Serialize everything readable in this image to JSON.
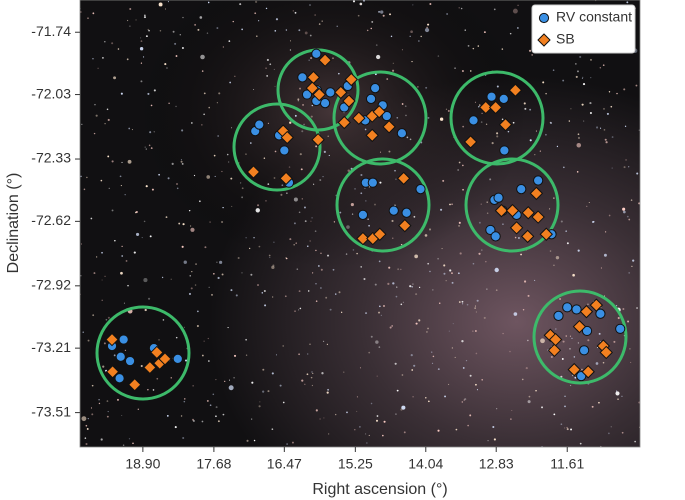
{
  "chart_data": {
    "type": "scatter",
    "x_label": "Right ascension (°)",
    "y_label": "Declination (°)",
    "xlim": [
      19.98,
      10.36
    ],
    "ylim": [
      -73.67,
      -71.59
    ],
    "xticks": [
      {
        "value": 18.9,
        "label": "18.90"
      },
      17.68,
      16.47,
      15.25,
      14.04,
      12.83,
      11.61
    ],
    "yticks": [
      -71.74,
      -72.03,
      -72.33,
      -72.62,
      -72.92,
      -73.21,
      -73.51
    ],
    "legend": "upper right",
    "series": [
      {
        "name": "RV constant",
        "color": "#3a8fe3",
        "marker": "circle",
        "x": [
          15.92,
          16.16,
          15.91,
          15.77,
          15.68,
          15.92,
          16.08,
          15.38,
          14.98,
          14.78,
          15.08,
          14.71,
          14.45,
          14.91,
          15.44,
          16.97,
          16.9,
          16.47,
          16.39,
          16.56,
          15.07,
          14.95,
          15.12,
          14.59,
          14.37,
          14.13,
          12.91,
          12.7,
          12.69,
          13.22,
          12.86,
          12.79,
          12.72,
          12.93,
          12.84,
          12.4,
          12.11,
          11.88,
          12.48,
          19.43,
          19.23,
          19.28,
          19.3,
          19.12,
          18.71,
          18.3,
          11.76,
          11.61,
          11.45,
          11.27,
          11.04,
          10.7,
          11.37,
          11.32
        ],
        "y": [
          -71.84,
          -71.95,
          -72.01,
          -72.07,
          -72.02,
          -72.06,
          -72.03,
          -71.99,
          -72.05,
          -72.08,
          -72.15,
          -72.13,
          -72.21,
          -72.0,
          -72.09,
          -72.2,
          -72.17,
          -72.29,
          -72.44,
          -72.22,
          -72.44,
          -72.44,
          -72.59,
          -72.57,
          -72.58,
          -72.47,
          -72.04,
          -72.05,
          -72.29,
          -72.15,
          -72.52,
          -72.51,
          -72.57,
          -72.66,
          -72.69,
          -72.47,
          -72.43,
          -72.68,
          -72.59,
          -73.2,
          -73.17,
          -73.25,
          -73.35,
          -73.27,
          -73.21,
          -73.26,
          -73.06,
          -73.02,
          -73.03,
          -73.13,
          -73.05,
          -73.12,
          -73.34,
          -73.22
        ]
      },
      {
        "name": "SB",
        "color": "#f28020",
        "marker": "diamond",
        "x": [
          15.77,
          15.97,
          15.99,
          15.87,
          15.5,
          15.32,
          15.36,
          15.19,
          14.96,
          14.84,
          14.67,
          15.44,
          14.96,
          16.49,
          16.42,
          15.89,
          17.0,
          16.44,
          15.12,
          14.95,
          14.83,
          14.42,
          14.4,
          13.01,
          12.84,
          12.5,
          12.67,
          13.27,
          12.74,
          12.55,
          12.48,
          12.28,
          12.11,
          12.14,
          11.97,
          12.29,
          19.43,
          19.42,
          19.04,
          18.78,
          18.66,
          18.61,
          18.52,
          11.9,
          11.83,
          11.4,
          11.11,
          10.99,
          10.94,
          11.49,
          11.25,
          11.81,
          11.28
        ],
        "y": [
          -71.87,
          -71.95,
          -72.0,
          -72.03,
          -72.02,
          -71.96,
          -72.06,
          -72.14,
          -72.13,
          -72.11,
          -72.18,
          -72.16,
          -72.22,
          -72.2,
          -72.23,
          -72.24,
          -72.39,
          -72.42,
          -72.7,
          -72.7,
          -72.68,
          -72.42,
          -72.64,
          -72.09,
          -72.09,
          -72.01,
          -72.17,
          -72.25,
          -72.57,
          -72.57,
          -72.65,
          -72.58,
          -72.6,
          -72.49,
          -72.68,
          -72.69,
          -73.17,
          -73.32,
          -73.38,
          -73.3,
          -73.23,
          -73.28,
          -73.26,
          -73.15,
          -73.22,
          -73.11,
          -73.01,
          -73.2,
          -73.23,
          -73.31,
          -73.32,
          -73.17,
          -73.04
        ]
      }
    ]
  }
}
